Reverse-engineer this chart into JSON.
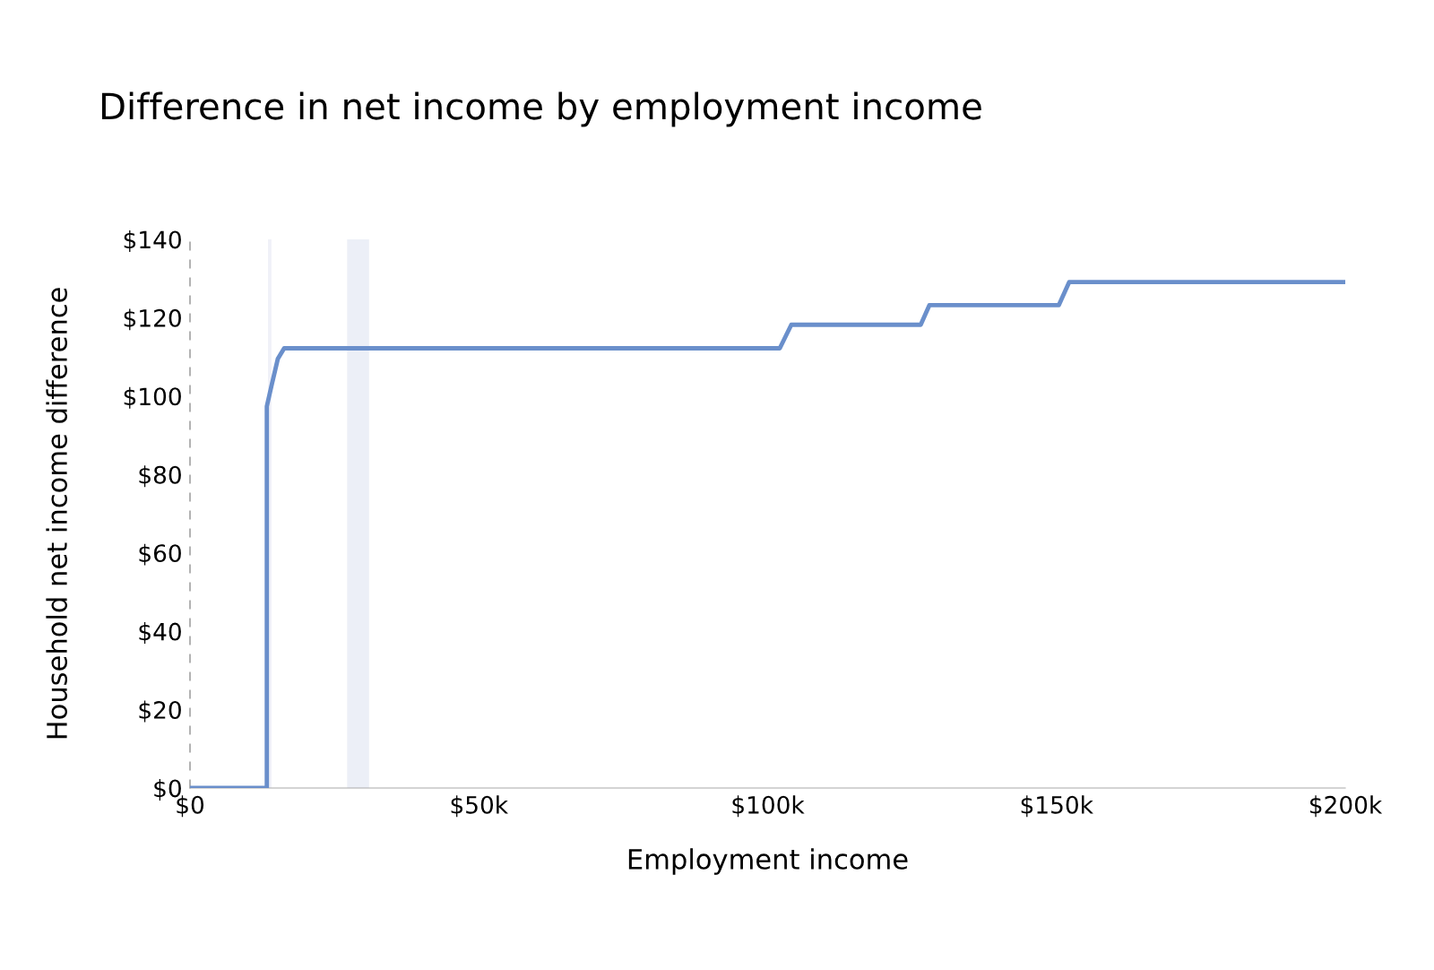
{
  "chart_data": {
    "type": "line",
    "title": "Difference in net income by employment income",
    "xlabel": "Employment income",
    "ylabel": "Household net income difference",
    "x": [
      0,
      13300,
      13300,
      14100,
      15200,
      16300,
      102100,
      104100,
      126500,
      128000,
      150400,
      152200,
      200000
    ],
    "series": [
      {
        "color": "#6a8fcb",
        "values": [
          0,
          0,
          97.4,
          102.6,
          109.5,
          112.2,
          112.2,
          118.2,
          118.2,
          123.2,
          123.2,
          129.1,
          129.1
        ]
      }
    ],
    "xlim": [
      0,
      200000
    ],
    "ylim": [
      0,
      140
    ],
    "xticks": [
      {
        "value": 0,
        "label": "$0"
      },
      {
        "value": 50000,
        "label": "$50k"
      },
      {
        "value": 100000,
        "label": "$100k"
      },
      {
        "value": 150000,
        "label": "$150k"
      },
      {
        "value": 200000,
        "label": "$200k"
      }
    ],
    "yticks": [
      {
        "value": 0,
        "label": "$0"
      },
      {
        "value": 20,
        "label": "$20"
      },
      {
        "value": 40,
        "label": "$40"
      },
      {
        "value": 60,
        "label": "$60"
      },
      {
        "value": 80,
        "label": "$80"
      },
      {
        "value": 100,
        "label": "$100"
      },
      {
        "value": 120,
        "label": "$120"
      },
      {
        "value": 140,
        "label": "$140"
      }
    ],
    "bands": [
      {
        "axis": "x",
        "from": 13500,
        "to": 14100,
        "color": "#f0f1f8"
      },
      {
        "axis": "x",
        "from": 27200,
        "to": 31000,
        "color": "#eceff7"
      }
    ],
    "grid": false,
    "legend": false,
    "marker": "none",
    "line_style": "solid"
  }
}
